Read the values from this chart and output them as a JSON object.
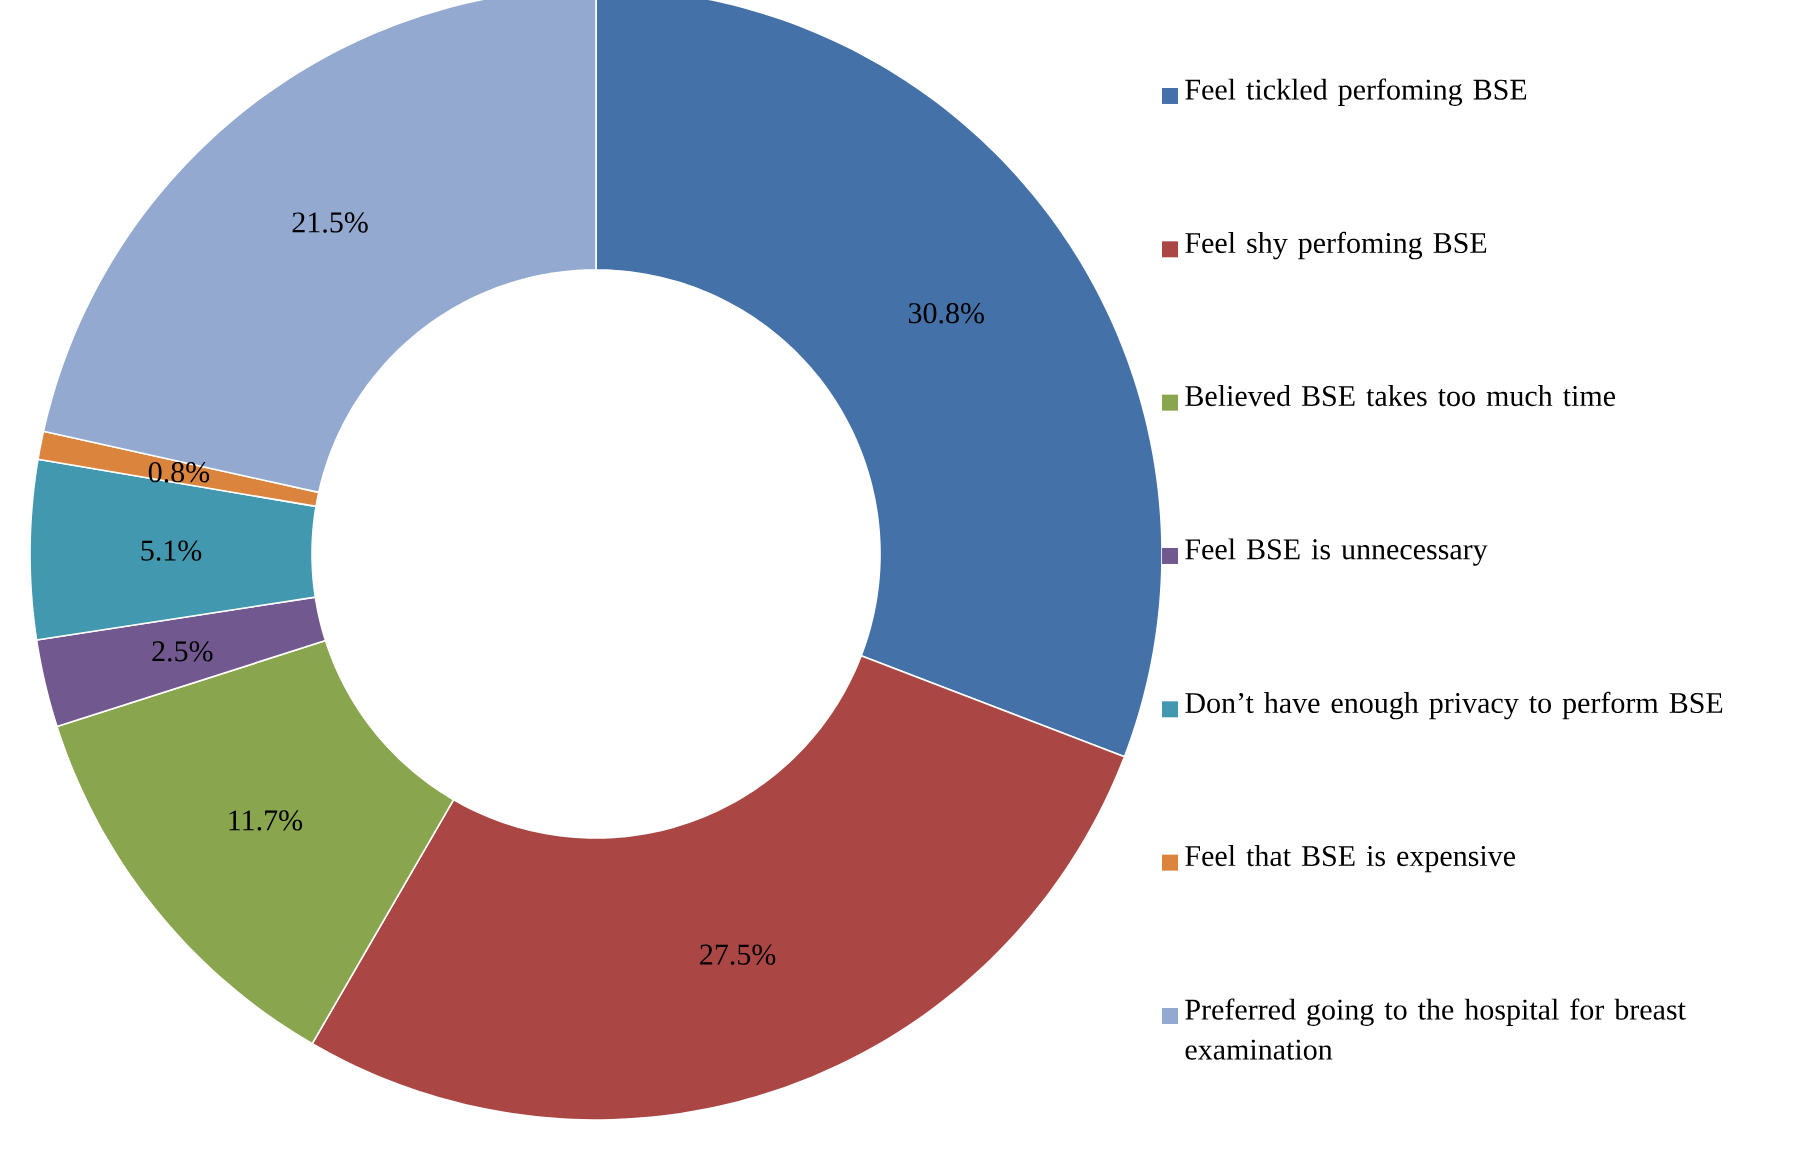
{
  "chart_data": {
    "type": "donut",
    "categories": [
      "Feel tickled perfoming BSE",
      "Feel shy perfoming BSE",
      "Believed BSE takes too much time",
      "Feel BSE is unnecessary",
      "Don’t have enough privacy to perform BSE",
      "Feel that BSE is expensive",
      "Preferred going to the hospital for breast examination"
    ],
    "values": [
      30.8,
      27.5,
      11.7,
      2.5,
      5.1,
      0.8,
      21.5
    ],
    "value_labels": [
      "30.8%",
      "27.5%",
      "11.7%",
      "2.5%",
      "5.1%",
      "0.8%",
      "21.5%"
    ],
    "colors": [
      "#4472a8",
      "#aa4643",
      "#89a54e",
      "#71588f",
      "#4198af",
      "#db843d",
      "#93a9cf"
    ],
    "legend": "right"
  }
}
